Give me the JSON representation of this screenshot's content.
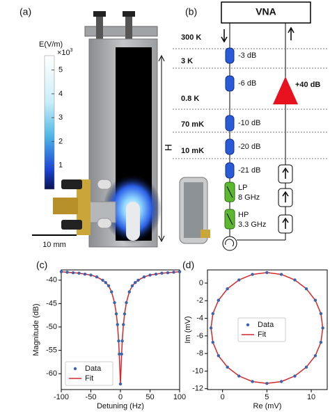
{
  "panels": {
    "a": {
      "label": "(a)",
      "scale_bar": "10 mm",
      "height": "H",
      "colorbar": {
        "title": "E(V/m)",
        "multiplier": "×10",
        "exponent": "3",
        "ticks": [
          1,
          2,
          3,
          4,
          5
        ],
        "lim": [
          0,
          5.6
        ]
      }
    },
    "b": {
      "label": "(b)",
      "vna": "VNA",
      "temperatures": [
        "300 K",
        "3 K",
        "0.8 K",
        "70 mK",
        "10 mK"
      ],
      "attenuators": [
        "-3 dB",
        "-6 dB",
        "-10 dB",
        "-20 dB",
        "-21 dB"
      ],
      "amplifier": "+40 dB",
      "filters": [
        {
          "name": "LP",
          "freq": "8 GHz"
        },
        {
          "name": "HP",
          "freq": "3.3 GHz"
        }
      ]
    }
  },
  "chart_data": [
    {
      "type": "line",
      "label": "(c)",
      "x_label": "Detuning (Hz)",
      "y_label": "Magnitude (dB)",
      "x": [
        -100,
        -90,
        -80,
        -70,
        -60,
        -50,
        -40,
        -30,
        -25,
        -20,
        -15,
        -10,
        -7,
        -5,
        -3,
        -2,
        0,
        2,
        3,
        5,
        7,
        10,
        15,
        20,
        25,
        30,
        40,
        50,
        60,
        70,
        80,
        90,
        100
      ],
      "series": [
        {
          "name": "Data",
          "color": "#3b63b0",
          "style": "markers",
          "values": [
            -38.2,
            -38.3,
            -38.4,
            -38.5,
            -38.7,
            -38.9,
            -39.3,
            -40.0,
            -40.5,
            -41.2,
            -42.5,
            -44.8,
            -47.2,
            -49.5,
            -53.0,
            -55.8,
            -62.2,
            -55.8,
            -53.0,
            -49.5,
            -47.2,
            -44.8,
            -42.5,
            -41.2,
            -40.5,
            -40.0,
            -39.3,
            -38.9,
            -38.7,
            -38.5,
            -38.4,
            -38.3,
            -38.2
          ]
        },
        {
          "name": "Fit",
          "color": "#d62728",
          "style": "line",
          "values": [
            -38.2,
            -38.3,
            -38.4,
            -38.5,
            -38.7,
            -38.9,
            -39.3,
            -40.0,
            -40.5,
            -41.2,
            -42.5,
            -44.8,
            -47.2,
            -49.5,
            -53.0,
            -55.8,
            -62.2,
            -55.8,
            -53.0,
            -49.5,
            -47.2,
            -44.8,
            -42.5,
            -41.2,
            -40.5,
            -40.0,
            -39.3,
            -38.9,
            -38.7,
            -38.5,
            -38.4,
            -38.3,
            -38.2
          ]
        }
      ],
      "xlim": [
        -100,
        100
      ],
      "xticks": [
        -100,
        -50,
        0,
        50,
        100
      ],
      "ylim": [
        -63.4,
        -37.8
      ],
      "yticks": [
        -40,
        -45,
        -50,
        -55,
        -60
      ],
      "legend": "lower left"
    },
    {
      "type": "scatter",
      "label": "(d)",
      "x_label": "Re (mV)",
      "y_label": "Im (mV)",
      "x": [
        11.3,
        11.09,
        10.46,
        9.45,
        8.15,
        6.63,
        5.0,
        3.37,
        1.85,
        0.55,
        -0.46,
        -1.09,
        -1.3,
        -1.09,
        -0.46,
        0.55,
        1.85,
        3.37,
        5.0,
        6.63,
        8.15,
        9.45,
        10.46,
        11.09
      ],
      "series": [
        {
          "name": "Data",
          "color": "#3b63b0",
          "style": "markers",
          "values": [
            -5.1,
            -3.47,
            -1.95,
            -0.65,
            0.36,
            0.99,
            1.2,
            0.99,
            0.36,
            -0.65,
            -1.95,
            -3.47,
            -5.1,
            -6.73,
            -8.25,
            -9.55,
            -10.56,
            -11.19,
            -11.4,
            -11.19,
            -10.56,
            -9.55,
            -8.25,
            -6.73
          ]
        },
        {
          "name": "Fit",
          "color": "#d62728",
          "style": "line",
          "closed": true,
          "values": [
            -5.1,
            -3.47,
            -1.95,
            -0.65,
            0.36,
            0.99,
            1.2,
            0.99,
            0.36,
            -0.65,
            -1.95,
            -3.47,
            -5.1,
            -6.73,
            -8.25,
            -9.55,
            -10.56,
            -11.19,
            -11.4,
            -11.19,
            -10.56,
            -9.55,
            -8.25,
            -6.73
          ]
        }
      ],
      "xlim": [
        -1.7,
        11.8
      ],
      "xticks": [
        0,
        5,
        10
      ],
      "ylim": [
        -12.1,
        1.5
      ],
      "yticks": [
        0,
        -2,
        -4,
        -6,
        -8,
        -10,
        -12
      ],
      "legend": "center"
    }
  ]
}
